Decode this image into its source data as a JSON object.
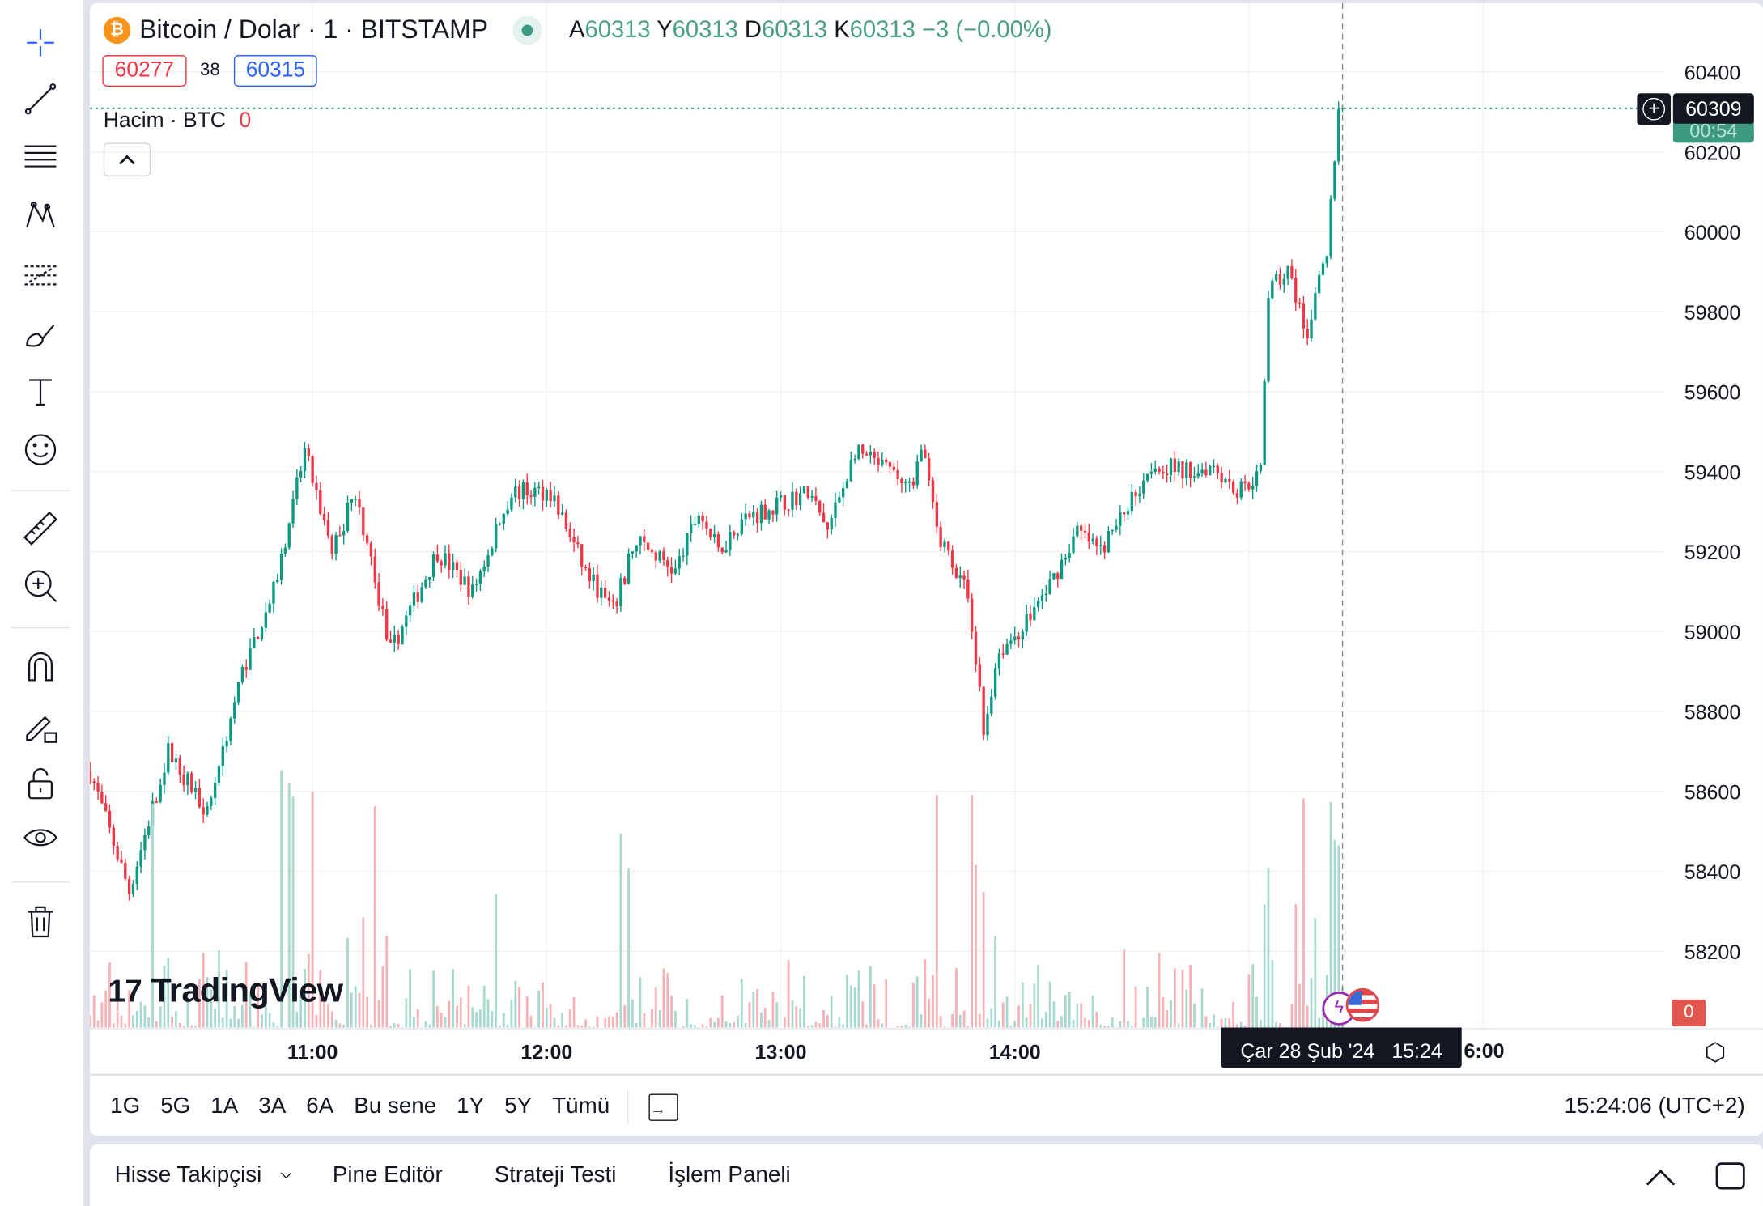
{
  "symbol": {
    "title": "Bitcoin / Dolar · 1 · BITSTAMP",
    "icon": "bitcoin-icon"
  },
  "ohlc": {
    "o_label": "A",
    "o": "60313",
    "h_label": "Y",
    "h": "60313",
    "l_label": "D",
    "l": "60313",
    "c_label": "K",
    "c": "60313",
    "change": "−3 (−0.00%)"
  },
  "bid_ask": {
    "sell": "60277",
    "spread": "38",
    "buy": "60315"
  },
  "volume_legend": {
    "label": "Hacim · BTC",
    "value": "0"
  },
  "price_axis": {
    "ticks": [
      "60400",
      "60200",
      "60000",
      "59800",
      "59600",
      "59400",
      "59200",
      "59000",
      "58800",
      "58600",
      "58400",
      "58200"
    ],
    "last_price": "60309",
    "countdown": "00:54",
    "volume_badge": "0"
  },
  "time_axis": {
    "ticks": [
      "11:00",
      "12:00",
      "13:00",
      "14:00"
    ],
    "partial_tick": "6:00",
    "crosshair_label": "Çar 28 Şub '24   15:24"
  },
  "colors": {
    "up": "#089981",
    "down": "#f23645",
    "up_vol": "#a8d9cf",
    "down_vol": "#f5b3b8",
    "axis_dark": "#131722"
  },
  "watermark": "TradingView",
  "range_buttons": [
    "1G",
    "5G",
    "1A",
    "3A",
    "6A",
    "Bu sene",
    "1Y",
    "5Y",
    "Tümü"
  ],
  "clock": "15:24:06 (UTC+2)",
  "bottom_tabs": [
    "Hisse Takipçisi",
    "Pine Editör",
    "Strateji Testi",
    "İşlem Paneli"
  ],
  "toolbar_icons": [
    "crosshair-icon",
    "trend-line-icon",
    "fib-icon",
    "pattern-icon",
    "forecast-icon",
    "brush-icon",
    "text-icon",
    "emoji-icon",
    "ruler-icon",
    "zoom-in-icon",
    "magnet-icon",
    "lock-drawing-icon",
    "unlock-icon",
    "eye-icon",
    "trash-icon"
  ],
  "chart_data": {
    "type": "candlestick",
    "xlabel": "",
    "ylabel": "",
    "ylim": [
      58130,
      60480
    ],
    "price_path": [
      [
        "10:03",
        58650
      ],
      [
        "10:13",
        58350
      ],
      [
        "10:23",
        58700
      ],
      [
        "10:33",
        58550
      ],
      [
        "10:42",
        58900
      ],
      [
        "10:50",
        59100
      ],
      [
        "10:58",
        59450
      ],
      [
        "11:05",
        59200
      ],
      [
        "11:11",
        59350
      ],
      [
        "11:20",
        58950
      ],
      [
        "11:32",
        59200
      ],
      [
        "11:41",
        59100
      ],
      [
        "11:51",
        59350
      ],
      [
        "12:01",
        59350
      ],
      [
        "12:10",
        59150
      ],
      [
        "12:17",
        59050
      ],
      [
        "12:23",
        59230
      ],
      [
        "12:33",
        59150
      ],
      [
        "12:39",
        59300
      ],
      [
        "12:44",
        59200
      ],
      [
        "12:50",
        59280
      ],
      [
        "13:07",
        59350
      ],
      [
        "13:12",
        59250
      ],
      [
        "13:19",
        59450
      ],
      [
        "13:28",
        59400
      ],
      [
        "13:34",
        59350
      ],
      [
        "13:36",
        59480
      ],
      [
        "13:40",
        59250
      ],
      [
        "13:48",
        59100
      ],
      [
        "13:52",
        58750
      ],
      [
        "13:56",
        58950
      ],
      [
        "14:01",
        59000
      ],
      [
        "14:08",
        59100
      ],
      [
        "14:16",
        59250
      ],
      [
        "14:22",
        59200
      ],
      [
        "14:28",
        59300
      ],
      [
        "14:35",
        59420
      ],
      [
        "14:45",
        59400
      ],
      [
        "14:51",
        59420
      ],
      [
        "14:57",
        59350
      ],
      [
        "15:03",
        59400
      ],
      [
        "15:05",
        59850
      ],
      [
        "15:10",
        59900
      ],
      [
        "15:15",
        59750
      ],
      [
        "15:20",
        59950
      ],
      [
        "15:23",
        60300
      ]
    ]
  }
}
